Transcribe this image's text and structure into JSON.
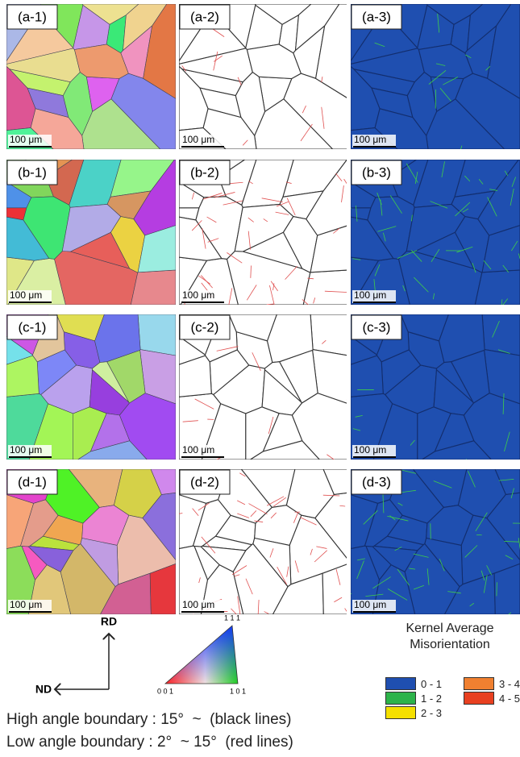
{
  "panels": [
    {
      "label": "(a-1)",
      "scale_bar": "100 μm"
    },
    {
      "label": "(a-2)",
      "scale_bar": "100 μm"
    },
    {
      "label": "(a-3)",
      "scale_bar": "100 μm"
    },
    {
      "label": "(b-1)",
      "scale_bar": "100 μm"
    },
    {
      "label": "(b-2)",
      "scale_bar": "100 μm"
    },
    {
      "label": "(b-3)",
      "scale_bar": "100 μm"
    },
    {
      "label": "(c-1)",
      "scale_bar": "100 μm"
    },
    {
      "label": "(c-2)",
      "scale_bar": "100 μm"
    },
    {
      "label": "(c-3)",
      "scale_bar": "100 μm"
    },
    {
      "label": "(d-1)",
      "scale_bar": "100 μm"
    },
    {
      "label": "(d-2)",
      "scale_bar": "100 μm"
    },
    {
      "label": "(d-3)",
      "scale_bar": "100 μm"
    }
  ],
  "orientation_axes": {
    "vertical": "RD",
    "horizontal": "ND"
  },
  "ipf_triangle": {
    "top": "1 1 1",
    "left": "0 0 1",
    "right": "1 0 1"
  },
  "kam_legend": {
    "title": "Kernel Average Misorientation",
    "entries": [
      {
        "label": "0 - 1",
        "color": "#1f4fb0"
      },
      {
        "label": "1 - 2",
        "color": "#2db34a"
      },
      {
        "label": "2 - 3",
        "color": "#f5e000"
      },
      {
        "label": "3 - 4",
        "color": "#f08030"
      },
      {
        "label": "4 - 5",
        "color": "#e84020"
      }
    ]
  },
  "boundary_notes": [
    "High angle boundary : 15°  ~  (black lines)",
    "Low angle boundary : 2°  ~ 15°  (red lines)"
  ]
}
